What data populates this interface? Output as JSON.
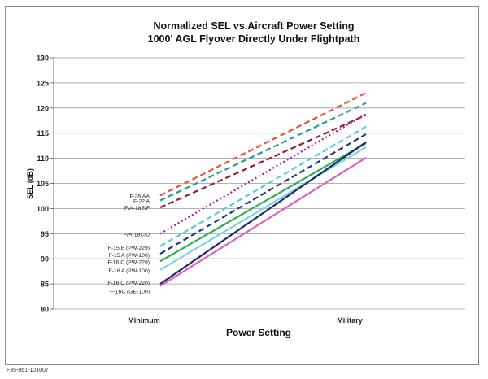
{
  "figure_id": "F35-061-101007",
  "chart_data": {
    "type": "line",
    "title": "Normalized SEL vs.Aircraft Power Setting",
    "subtitle": "1000' AGL Flyover Directly Under Flightpath",
    "xlabel": "Power Setting",
    "ylabel": "SEL (dB)",
    "categories": [
      "Minimum",
      "Military"
    ],
    "ylim": [
      80,
      130
    ],
    "yticks": [
      80,
      85,
      90,
      95,
      100,
      105,
      110,
      115,
      120,
      125,
      130
    ],
    "grid": true,
    "legend": "labels at left end of each line",
    "series": [
      {
        "name": "F-35 AA",
        "values": [
          102.6,
          123.0
        ],
        "color": "#e8533c",
        "dash": "dashed"
      },
      {
        "name": "F-22 A",
        "values": [
          101.6,
          121.0
        ],
        "color": "#2a9d8f",
        "dash": "dashed"
      },
      {
        "name": "F/A-18E/F",
        "values": [
          100.2,
          118.6
        ],
        "color": "#9b1b30",
        "dash": "dashed"
      },
      {
        "name": "F/A-18C/D",
        "values": [
          95.0,
          118.8
        ],
        "color": "#a21caf",
        "dash": "dotted"
      },
      {
        "name": "F-15 E (PW-229)",
        "values": [
          92.5,
          116.3
        ],
        "color": "#5bc8e8",
        "dash": "dashed"
      },
      {
        "name": "F-15 A (PW-100)",
        "values": [
          91.0,
          114.8
        ],
        "color": "#1e3a8a",
        "dash": "dashed"
      },
      {
        "name": "F-16 C (PW-229)",
        "values": [
          89.5,
          113.0
        ],
        "color": "#2eae55",
        "dash": "solid"
      },
      {
        "name": "F-16 A (PW-100)",
        "values": [
          87.8,
          112.2
        ],
        "color": "#7fd3e3",
        "dash": "solid"
      },
      {
        "name": "F-16 C (PW-220)",
        "values": [
          85.0,
          113.2
        ],
        "color": "#1b2a6b",
        "dash": "solid"
      },
      {
        "name": "F-16C (GE-100)",
        "values": [
          84.6,
          110.1
        ],
        "color": "#e060c0",
        "dash": "solid"
      }
    ]
  }
}
